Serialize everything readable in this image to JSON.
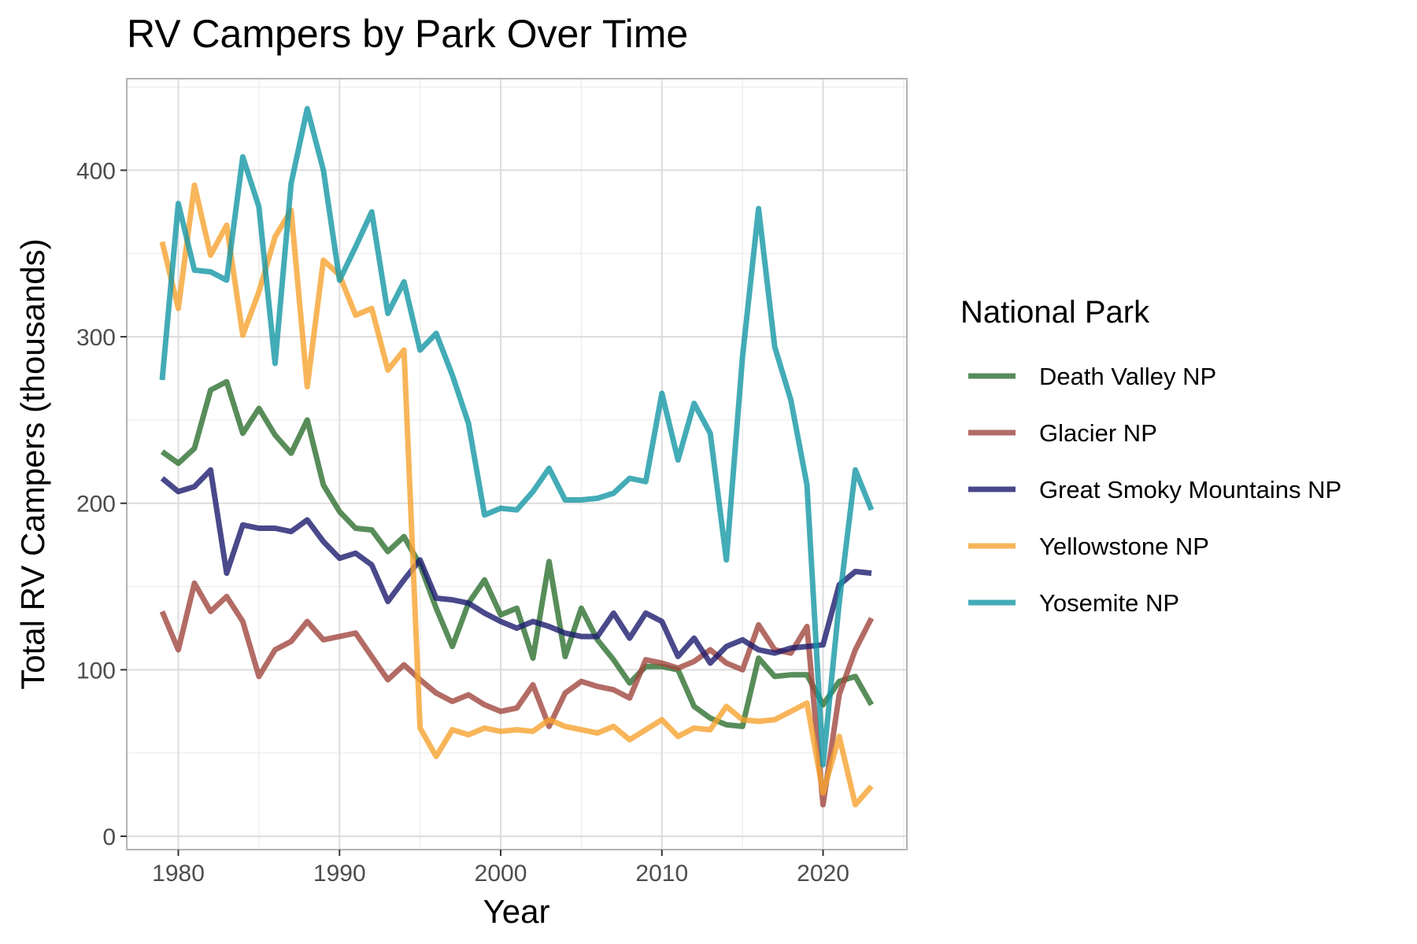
{
  "chart_data": {
    "type": "line",
    "title": "RV Campers by Park Over Time",
    "xlabel": "Year",
    "ylabel": "Total RV Campers (thousands)",
    "xlim": [
      1976.8,
      2025.2
    ],
    "ylim": [
      -8,
      455
    ],
    "x_ticks": [
      1980,
      1990,
      2000,
      2010,
      2020
    ],
    "y_ticks": [
      0,
      100,
      200,
      300,
      400
    ],
    "grid": true,
    "legend": {
      "title": "National Park",
      "position": "right"
    },
    "x": [
      1979,
      1980,
      1981,
      1982,
      1983,
      1984,
      1985,
      1986,
      1987,
      1988,
      1989,
      1990,
      1991,
      1992,
      1993,
      1994,
      1995,
      1996,
      1997,
      1998,
      1999,
      2000,
      2001,
      2002,
      2003,
      2004,
      2005,
      2006,
      2007,
      2008,
      2009,
      2010,
      2011,
      2012,
      2013,
      2014,
      2015,
      2016,
      2017,
      2018,
      2019,
      2020,
      2021,
      2022,
      2023
    ],
    "series": [
      {
        "name": "Death Valley NP",
        "color": "#2e7031",
        "values": [
          231,
          224,
          233,
          268,
          273,
          242,
          257,
          241,
          230,
          250,
          211,
          195,
          185,
          184,
          171,
          180,
          163,
          137,
          114,
          140,
          154,
          133,
          137,
          107,
          165,
          108,
          137,
          118,
          106,
          92,
          102,
          102,
          100,
          78,
          71,
          67,
          66,
          107,
          96,
          97,
          97,
          79,
          93,
          96,
          79
        ]
      },
      {
        "name": "Glacier NP",
        "color": "#a0473f",
        "values": [
          135,
          112,
          152,
          135,
          144,
          129,
          96,
          112,
          117,
          129,
          118,
          120,
          122,
          108,
          94,
          103,
          94,
          86,
          81,
          85,
          79,
          75,
          77,
          91,
          66,
          86,
          93,
          90,
          88,
          83,
          106,
          104,
          101,
          105,
          112,
          104,
          100,
          127,
          112,
          110,
          126,
          19,
          85,
          112,
          131
        ]
      },
      {
        "name": "Great Smoky Mountains NP",
        "color": "#1b1b6e",
        "values": [
          215,
          207,
          210,
          220,
          158,
          187,
          185,
          185,
          183,
          190,
          177,
          167,
          170,
          163,
          141,
          154,
          166,
          143,
          142,
          140,
          134,
          129,
          125,
          129,
          126,
          122,
          120,
          120,
          134,
          119,
          134,
          129,
          108,
          119,
          104,
          114,
          118,
          112,
          110,
          113,
          114,
          115,
          151,
          159,
          158
        ]
      },
      {
        "name": "Yellowstone NP",
        "color": "#f6a32f",
        "values": [
          357,
          317,
          391,
          349,
          367,
          301,
          327,
          360,
          376,
          270,
          346,
          337,
          313,
          317,
          280,
          292,
          65,
          48,
          64,
          61,
          65,
          63,
          64,
          63,
          70,
          66,
          64,
          62,
          66,
          58,
          64,
          70,
          60,
          65,
          64,
          78,
          70,
          69,
          70,
          75,
          80,
          26,
          60,
          19,
          30
        ]
      },
      {
        "name": "Yosemite NP",
        "color": "#1497a5",
        "values": [
          274,
          380,
          340,
          339,
          334,
          408,
          378,
          284,
          392,
          437,
          400,
          334,
          354,
          375,
          314,
          333,
          292,
          302,
          277,
          248,
          193,
          197,
          196,
          207,
          221,
          202,
          202,
          203,
          206,
          215,
          213,
          266,
          226,
          260,
          242,
          166,
          288,
          377,
          294,
          262,
          211,
          43,
          140,
          220,
          196
        ]
      }
    ]
  }
}
